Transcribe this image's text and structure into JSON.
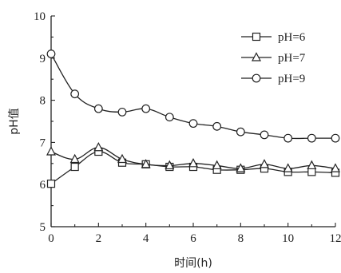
{
  "chart_data": {
    "type": "line",
    "xlabel": "时间(h)",
    "ylabel": "pH值",
    "xlim": [
      0,
      12
    ],
    "ylim": [
      5,
      10
    ],
    "xticks": [
      0,
      2,
      4,
      6,
      8,
      10,
      12
    ],
    "yticks": [
      5,
      6,
      7,
      8,
      9,
      10
    ],
    "x": [
      0,
      1,
      2,
      3,
      4,
      5,
      6,
      7,
      8,
      9,
      10,
      11,
      12
    ],
    "legend_position": "top-right",
    "grid": false,
    "series": [
      {
        "name": "pH=6",
        "marker": "square",
        "values": [
          6.02,
          6.42,
          6.78,
          6.52,
          6.48,
          6.42,
          6.42,
          6.35,
          6.35,
          6.38,
          6.3,
          6.3,
          6.28
        ]
      },
      {
        "name": "pH=7",
        "marker": "triangle",
        "values": [
          6.78,
          6.6,
          6.88,
          6.6,
          6.48,
          6.45,
          6.5,
          6.45,
          6.38,
          6.48,
          6.38,
          6.45,
          6.38
        ]
      },
      {
        "name": "pH=9",
        "marker": "circle",
        "values": [
          9.1,
          8.15,
          7.8,
          7.72,
          7.8,
          7.6,
          7.45,
          7.38,
          7.25,
          7.18,
          7.1,
          7.1,
          7.1
        ]
      }
    ]
  }
}
